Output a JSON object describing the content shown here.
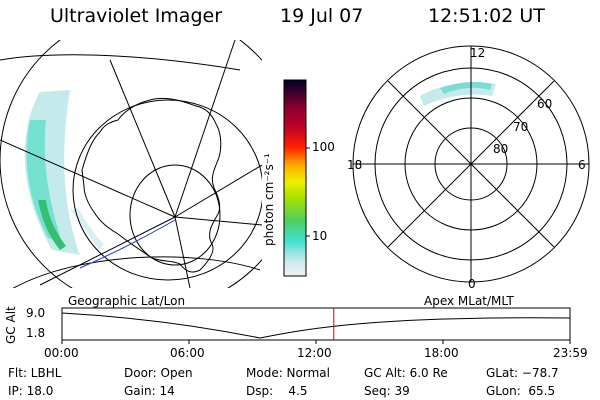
{
  "header": {
    "instrument": "Ultraviolet Imager",
    "date": "19 Jul 07",
    "time": "12:51:02 UT"
  },
  "colorbar": {
    "unit": "photon cm⁻²s⁻¹",
    "ticks": [
      "100",
      "10"
    ]
  },
  "polar": {
    "mlt_labels": {
      "top": "12",
      "left": "18",
      "right": "6",
      "bottom": "0"
    },
    "lat_labels": [
      "60",
      "70",
      "80"
    ]
  },
  "timeline": {
    "left_title": "Geographic Lat/Lon",
    "right_title": "Apex MLat/MLT",
    "axis_label": "GC Alt",
    "y_ticks": [
      "9.0",
      "1.8"
    ],
    "x_ticks": [
      "00:00",
      "06:00",
      "12:00",
      "18:00",
      "23:59"
    ],
    "current_time_fraction": 0.535,
    "colors": {
      "marker": "#cc0000"
    }
  },
  "footer": {
    "row1": {
      "filter": "Flt: LBHL",
      "door": "Door: Open",
      "mode": "Mode: Normal",
      "gc_alt": "GC Alt: 6.0 Re",
      "glat": "GLat: −78.7"
    },
    "row2": {
      "ip": "IP: 18.0",
      "gain": "Gain: 14",
      "dsp": "Dsp:    4.5",
      "seq": "Seq: 39",
      "glon": "GLon:  65.5"
    }
  }
}
